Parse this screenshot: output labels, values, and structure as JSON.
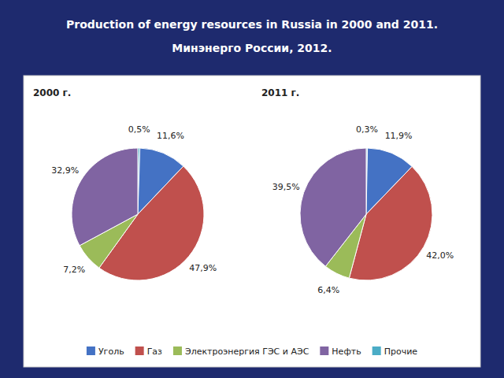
{
  "title": "Production of energy resources in Russia in 2000 and 2011.",
  "subtitle": "Минэнерго России, 2012.",
  "chart_data": [
    {
      "type": "pie",
      "title": "2000 г.",
      "categories": [
        "Прочие",
        "Уголь",
        "Газ",
        "Электроэнергия ГЭС и АЭС",
        "Нефть"
      ],
      "values": [
        0.5,
        11.6,
        47.9,
        7.2,
        32.9
      ],
      "value_labels": [
        "0,5%",
        "11,6%",
        "47,9%",
        "7,2%",
        "32,9%"
      ],
      "colors": [
        "#4bacc6",
        "#4472c4",
        "#c0504d",
        "#9bbb59",
        "#8064a2"
      ],
      "data_labels": true,
      "legend": "bottom"
    },
    {
      "type": "pie",
      "title": "2011 г.",
      "categories": [
        "Прочие",
        "Уголь",
        "Газ",
        "Электроэнергия ГЭС и АЭС",
        "Нефть"
      ],
      "values": [
        0.3,
        11.9,
        42.0,
        6.4,
        39.5
      ],
      "value_labels": [
        "0,3%",
        "11,9%",
        "42,0%",
        "6,4%",
        "39,5%"
      ],
      "colors": [
        "#4bacc6",
        "#4472c4",
        "#c0504d",
        "#9bbb59",
        "#8064a2"
      ],
      "data_labels": true,
      "legend": "bottom"
    }
  ]
}
